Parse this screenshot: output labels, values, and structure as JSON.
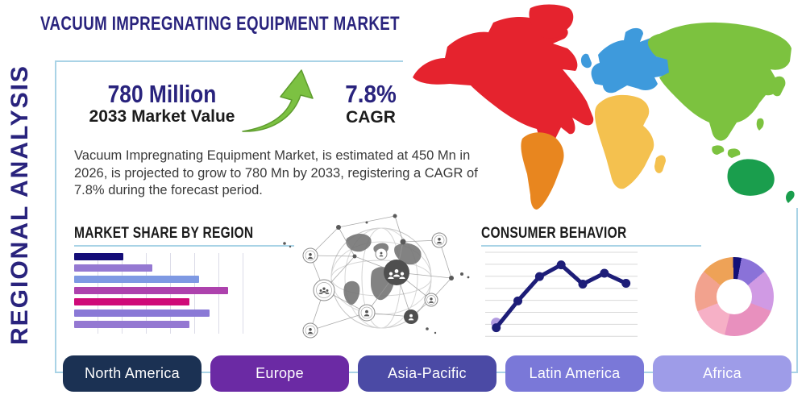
{
  "title": "VACUUM IMPREGNATING EQUIPMENT MARKET",
  "side_label": "REGIONAL ANALYSIS",
  "stats": {
    "market_value": "780 Million",
    "market_value_label": "2033 Market Value",
    "cagr_value": "7.8%",
    "cagr_label": "CAGR"
  },
  "description": "Vacuum Impregnating Equipment Market, is estimated at 450 Mn in 2026, is projected to grow to 780 Mn by 2033, registering a CAGR of 7.8% during the forecast period.",
  "colors": {
    "navy_text": "#29237d",
    "heading_text": "#1b1b1b",
    "panel_border": "#a9d3e6",
    "growth_arrow_green": "#7cc142",
    "chart_grid": "#dcdce8"
  },
  "regions": [
    {
      "label": "North America",
      "color": "#1b3153"
    },
    {
      "label": "Europe",
      "color": "#6b2aa4"
    },
    {
      "label": "Asia-Pacific",
      "color": "#4b4aa5"
    },
    {
      "label": "Latin America",
      "color": "#7a78d8"
    },
    {
      "label": "Africa",
      "color": "#9e9ce8"
    }
  ],
  "map": {
    "continents": [
      {
        "name": "North America",
        "color": "#e5232e"
      },
      {
        "name": "South America",
        "color": "#e8861f"
      },
      {
        "name": "Europe",
        "color": "#3e9adc"
      },
      {
        "name": "Africa",
        "color": "#f4c14f"
      },
      {
        "name": "Asia",
        "color": "#7cc23f"
      },
      {
        "name": "Australia",
        "color": "#1a9e4d"
      }
    ]
  },
  "chart_data": [
    {
      "id": "market_share_by_region",
      "type": "bar",
      "title": "MARKET SHARE BY REGION",
      "orientation": "horizontal",
      "categories": [
        "",
        "",
        "",
        "",
        "",
        "",
        ""
      ],
      "values": [
        29,
        46,
        74,
        91,
        68,
        80,
        68
      ],
      "value_note": "percent of axis width; no numeric axis labels shown in image",
      "bar_colors": [
        "#140d78",
        "#9579d2",
        "#7e99e3",
        "#ad42ad",
        "#cf0a78",
        "#8a79d6",
        "#9478d2"
      ],
      "grid": "vertical-light"
    },
    {
      "id": "consumer_behavior",
      "type": "line",
      "title": "CONSUMER BEHAVIOR",
      "x": [
        1,
        2,
        3,
        4,
        5,
        6,
        7
      ],
      "values": [
        10,
        42,
        71,
        85,
        62,
        75,
        63
      ],
      "ylim": [
        0,
        100
      ],
      "line_color": "#1d1d78",
      "first_point_halo_color": "#b19ae0",
      "grid": "horizontal-light"
    },
    {
      "id": "regional_share_donut",
      "type": "pie",
      "donut": true,
      "start_angle_deg": -2,
      "slices": [
        {
          "value": 3.5,
          "color": "#141078"
        },
        {
          "value": 11,
          "color": "#8a72d8"
        },
        {
          "value": 17,
          "color": "#d09ae4"
        },
        {
          "value": 23,
          "color": "#e890be"
        },
        {
          "value": 15,
          "color": "#f6b0c6"
        },
        {
          "value": 17,
          "color": "#f2a28e"
        },
        {
          "value": 13.5,
          "color": "#eea257"
        }
      ]
    }
  ]
}
